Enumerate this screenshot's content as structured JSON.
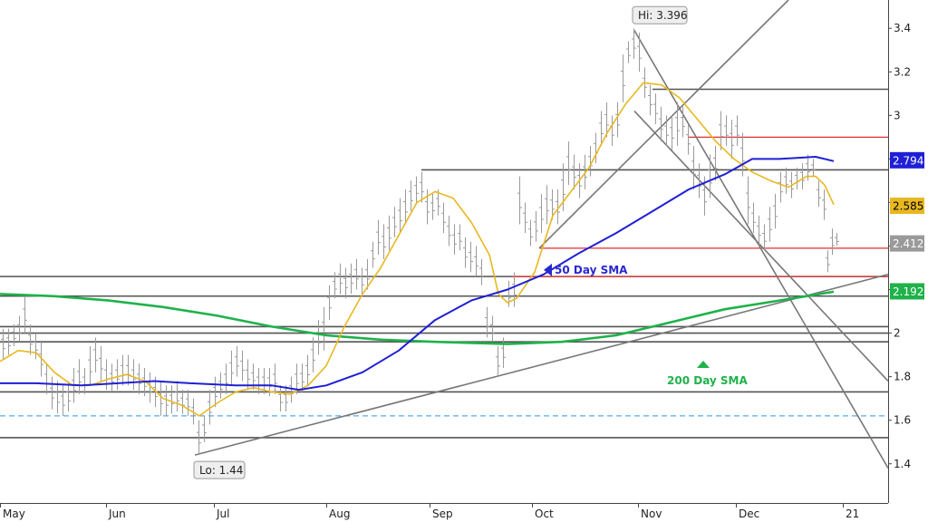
{
  "chart_data": {
    "type": "line",
    "title": "",
    "xlabel": "",
    "ylabel": "",
    "x_ticks": [
      "May",
      "Jun",
      "Jul",
      "Aug",
      "Sep",
      "Oct",
      "Nov",
      "Dec",
      "21"
    ],
    "y_ticks": [
      "1.4",
      "1.6",
      "1.8",
      "2",
      "2.2",
      "2.4",
      "2.6",
      "2.8",
      "3",
      "3.2",
      "3.4"
    ],
    "ylim": [
      1.22,
      3.53
    ],
    "grid": false,
    "series": [
      {
        "name": "50 Day SMA",
        "color": "#1f1fd6",
        "last": "2.794",
        "points": [
          [
            0,
            1.77
          ],
          [
            40,
            1.77
          ],
          [
            90,
            1.76
          ],
          [
            130,
            1.77
          ],
          [
            170,
            1.78
          ],
          [
            210,
            1.77
          ],
          [
            260,
            1.76
          ],
          [
            300,
            1.76
          ],
          [
            330,
            1.74
          ],
          [
            360,
            1.76
          ],
          [
            400,
            1.82
          ],
          [
            440,
            1.92
          ],
          [
            480,
            2.06
          ],
          [
            520,
            2.15
          ],
          [
            560,
            2.2
          ],
          [
            600,
            2.27
          ],
          [
            640,
            2.37
          ],
          [
            680,
            2.46
          ],
          [
            720,
            2.56
          ],
          [
            760,
            2.66
          ],
          [
            800,
            2.73
          ],
          [
            830,
            2.8
          ],
          [
            860,
            2.8
          ],
          [
            900,
            2.81
          ],
          [
            920,
            2.79
          ]
        ]
      },
      {
        "name": "200 Day SMA",
        "color": "#1fb24a",
        "last": "2.192",
        "points": [
          [
            0,
            2.18
          ],
          [
            60,
            2.17
          ],
          [
            120,
            2.15
          ],
          [
            180,
            2.12
          ],
          [
            240,
            2.08
          ],
          [
            300,
            2.03
          ],
          [
            360,
            1.99
          ],
          [
            420,
            1.97
          ],
          [
            480,
            1.96
          ],
          [
            560,
            1.95
          ],
          [
            620,
            1.96
          ],
          [
            680,
            1.99
          ],
          [
            740,
            2.05
          ],
          [
            800,
            2.11
          ],
          [
            860,
            2.15
          ],
          [
            920,
            2.19
          ]
        ]
      },
      {
        "name": "",
        "color": "#e8b820",
        "last": "2.585",
        "points": [
          [
            0,
            1.87
          ],
          [
            20,
            1.92
          ],
          [
            40,
            1.91
          ],
          [
            60,
            1.82
          ],
          [
            80,
            1.76
          ],
          [
            100,
            1.76
          ],
          [
            120,
            1.79
          ],
          [
            140,
            1.81
          ],
          [
            160,
            1.78
          ],
          [
            180,
            1.7
          ],
          [
            200,
            1.67
          ],
          [
            220,
            1.62
          ],
          [
            240,
            1.68
          ],
          [
            260,
            1.73
          ],
          [
            280,
            1.75
          ],
          [
            300,
            1.73
          ],
          [
            320,
            1.72
          ],
          [
            340,
            1.76
          ],
          [
            360,
            1.85
          ],
          [
            380,
            2.03
          ],
          [
            400,
            2.18
          ],
          [
            420,
            2.3
          ],
          [
            440,
            2.45
          ],
          [
            460,
            2.6
          ],
          [
            480,
            2.65
          ],
          [
            500,
            2.62
          ],
          [
            520,
            2.51
          ],
          [
            540,
            2.36
          ],
          [
            550,
            2.18
          ],
          [
            560,
            2.14
          ],
          [
            570,
            2.16
          ],
          [
            590,
            2.28
          ],
          [
            610,
            2.54
          ],
          [
            630,
            2.65
          ],
          [
            650,
            2.76
          ],
          [
            670,
            2.92
          ],
          [
            690,
            3.05
          ],
          [
            710,
            3.15
          ],
          [
            730,
            3.14
          ],
          [
            750,
            3.08
          ],
          [
            770,
            2.98
          ],
          [
            790,
            2.88
          ],
          [
            810,
            2.8
          ],
          [
            830,
            2.74
          ],
          [
            850,
            2.7
          ],
          [
            870,
            2.67
          ],
          [
            890,
            2.72
          ],
          [
            900,
            2.72
          ],
          [
            910,
            2.68
          ],
          [
            920,
            2.59
          ]
        ]
      }
    ],
    "price_bars": [
      [
        3,
        1.88,
        2.02
      ],
      [
        9,
        1.9,
        2.02
      ],
      [
        15,
        1.94,
        2.04
      ],
      [
        21,
        1.96,
        2.08
      ],
      [
        27,
        2.0,
        2.17
      ],
      [
        33,
        1.9,
        2.04
      ],
      [
        39,
        1.88,
        2.0
      ],
      [
        45,
        1.8,
        1.96
      ],
      [
        51,
        1.72,
        1.86
      ],
      [
        57,
        1.65,
        1.8
      ],
      [
        63,
        1.63,
        1.78
      ],
      [
        69,
        1.62,
        1.76
      ],
      [
        75,
        1.64,
        1.78
      ],
      [
        81,
        1.68,
        1.84
      ],
      [
        87,
        1.72,
        1.88
      ],
      [
        93,
        1.72,
        1.84
      ],
      [
        99,
        1.76,
        1.94
      ],
      [
        105,
        1.82,
        1.98
      ],
      [
        111,
        1.78,
        1.94
      ],
      [
        117,
        1.74,
        1.88
      ],
      [
        123,
        1.73,
        1.86
      ],
      [
        129,
        1.74,
        1.88
      ],
      [
        135,
        1.76,
        1.9
      ],
      [
        141,
        1.76,
        1.9
      ],
      [
        147,
        1.74,
        1.88
      ],
      [
        153,
        1.72,
        1.86
      ],
      [
        159,
        1.71,
        1.84
      ],
      [
        165,
        1.68,
        1.82
      ],
      [
        171,
        1.66,
        1.8
      ],
      [
        177,
        1.62,
        1.78
      ],
      [
        183,
        1.62,
        1.76
      ],
      [
        189,
        1.63,
        1.76
      ],
      [
        195,
        1.64,
        1.78
      ],
      [
        201,
        1.63,
        1.74
      ],
      [
        207,
        1.62,
        1.74
      ],
      [
        213,
        1.58,
        1.7
      ],
      [
        219,
        1.44,
        1.6
      ],
      [
        225,
        1.5,
        1.62
      ],
      [
        231,
        1.58,
        1.74
      ],
      [
        237,
        1.66,
        1.8
      ],
      [
        243,
        1.7,
        1.82
      ],
      [
        249,
        1.72,
        1.86
      ],
      [
        255,
        1.76,
        1.92
      ],
      [
        261,
        1.8,
        1.94
      ],
      [
        267,
        1.78,
        1.92
      ],
      [
        273,
        1.74,
        1.88
      ],
      [
        279,
        1.74,
        1.86
      ],
      [
        285,
        1.72,
        1.84
      ],
      [
        291,
        1.72,
        1.84
      ],
      [
        297,
        1.71,
        1.84
      ],
      [
        303,
        1.72,
        1.86
      ],
      [
        309,
        1.64,
        1.76
      ],
      [
        315,
        1.64,
        1.76
      ],
      [
        321,
        1.68,
        1.8
      ],
      [
        327,
        1.72,
        1.86
      ],
      [
        333,
        1.73,
        1.86
      ],
      [
        339,
        1.76,
        1.9
      ],
      [
        345,
        1.82,
        1.98
      ],
      [
        351,
        1.9,
        2.06
      ],
      [
        357,
        1.92,
        2.12
      ],
      [
        363,
        2.06,
        2.22
      ],
      [
        369,
        2.16,
        2.28
      ],
      [
        375,
        2.18,
        2.32
      ],
      [
        381,
        2.16,
        2.3
      ],
      [
        387,
        2.18,
        2.32
      ],
      [
        393,
        2.2,
        2.34
      ],
      [
        399,
        2.18,
        2.3
      ],
      [
        405,
        2.2,
        2.34
      ],
      [
        411,
        2.3,
        2.42
      ],
      [
        417,
        2.36,
        2.52
      ],
      [
        423,
        2.34,
        2.5
      ],
      [
        429,
        2.38,
        2.54
      ],
      [
        435,
        2.44,
        2.58
      ],
      [
        441,
        2.46,
        2.62
      ],
      [
        447,
        2.5,
        2.66
      ],
      [
        453,
        2.56,
        2.7
      ],
      [
        459,
        2.6,
        2.72
      ],
      [
        465,
        2.6,
        2.74
      ],
      [
        471,
        2.5,
        2.66
      ],
      [
        477,
        2.52,
        2.64
      ],
      [
        483,
        2.54,
        2.66
      ],
      [
        489,
        2.46,
        2.6
      ],
      [
        495,
        2.4,
        2.54
      ],
      [
        501,
        2.36,
        2.5
      ],
      [
        507,
        2.38,
        2.5
      ],
      [
        513,
        2.3,
        2.44
      ],
      [
        519,
        2.28,
        2.42
      ],
      [
        525,
        2.26,
        2.4
      ],
      [
        531,
        2.22,
        2.34
      ],
      [
        537,
        1.98,
        2.12
      ],
      [
        543,
        1.96,
        2.08
      ],
      [
        549,
        1.8,
        1.94
      ],
      [
        555,
        1.84,
        1.98
      ],
      [
        561,
        2.12,
        2.24
      ],
      [
        567,
        2.12,
        2.28
      ],
      [
        573,
        2.5,
        2.72
      ],
      [
        579,
        2.46,
        2.6
      ],
      [
        585,
        2.4,
        2.52
      ],
      [
        591,
        2.42,
        2.56
      ],
      [
        597,
        2.46,
        2.64
      ],
      [
        603,
        2.5,
        2.68
      ],
      [
        609,
        2.52,
        2.66
      ],
      [
        615,
        2.5,
        2.66
      ],
      [
        621,
        2.56,
        2.78
      ],
      [
        627,
        2.68,
        2.88
      ],
      [
        633,
        2.66,
        2.82
      ],
      [
        639,
        2.62,
        2.78
      ],
      [
        645,
        2.66,
        2.82
      ],
      [
        651,
        2.72,
        2.86
      ],
      [
        657,
        2.78,
        2.92
      ],
      [
        663,
        2.86,
        3.02
      ],
      [
        669,
        2.9,
        3.06
      ],
      [
        675,
        2.86,
        3.0
      ],
      [
        681,
        2.9,
        3.06
      ],
      [
        687,
        3.06,
        3.28
      ],
      [
        693,
        3.24,
        3.34
      ],
      [
        699,
        3.26,
        3.4
      ],
      [
        705,
        3.2,
        3.38
      ],
      [
        711,
        3.08,
        3.22
      ],
      [
        717,
        3.0,
        3.14
      ],
      [
        723,
        2.96,
        3.1
      ],
      [
        729,
        2.88,
        3.04
      ],
      [
        735,
        2.86,
        3.0
      ],
      [
        741,
        2.84,
        3.0
      ],
      [
        747,
        2.86,
        3.06
      ],
      [
        753,
        2.9,
        3.04
      ],
      [
        759,
        2.82,
        2.96
      ],
      [
        765,
        2.66,
        2.86
      ],
      [
        771,
        2.62,
        2.78
      ],
      [
        777,
        2.54,
        2.72
      ],
      [
        783,
        2.62,
        2.82
      ],
      [
        789,
        2.7,
        2.86
      ],
      [
        795,
        2.84,
        3.02
      ],
      [
        801,
        2.86,
        3.0
      ],
      [
        807,
        2.8,
        2.98
      ],
      [
        813,
        2.86,
        3.0
      ],
      [
        819,
        2.72,
        2.92
      ],
      [
        825,
        2.5,
        2.72
      ],
      [
        831,
        2.46,
        2.6
      ],
      [
        837,
        2.4,
        2.54
      ],
      [
        843,
        2.38,
        2.5
      ],
      [
        849,
        2.42,
        2.58
      ],
      [
        855,
        2.48,
        2.64
      ],
      [
        861,
        2.6,
        2.74
      ],
      [
        867,
        2.64,
        2.76
      ],
      [
        873,
        2.62,
        2.74
      ],
      [
        879,
        2.66,
        2.76
      ],
      [
        885,
        2.66,
        2.78
      ],
      [
        891,
        2.7,
        2.82
      ],
      [
        897,
        2.72,
        2.8
      ],
      [
        903,
        2.58,
        2.7
      ],
      [
        909,
        2.52,
        2.66
      ],
      [
        913,
        2.28,
        2.38
      ],
      [
        918,
        2.36,
        2.48
      ],
      [
        923,
        2.4,
        2.46
      ]
    ],
    "horizontal_levels": [
      {
        "value": 3.12,
        "color": "#555555",
        "x_start": 720
      },
      {
        "value": 2.9,
        "color": "#e03030",
        "x_start": 760
      },
      {
        "value": 2.75,
        "color": "#555555",
        "x_start": 465
      },
      {
        "value": 2.39,
        "color": "#e03030",
        "x_start": 595
      },
      {
        "value": 2.26,
        "color": "#555555",
        "x_start": 0
      },
      {
        "value": 2.26,
        "color": "#e03030",
        "x_start": 565
      },
      {
        "value": 2.17,
        "color": "#555555",
        "x_start": 0
      },
      {
        "value": 2.03,
        "color": "#555555",
        "x_start": 0
      },
      {
        "value": 2.0,
        "color": "#555555",
        "x_start": 0
      },
      {
        "value": 1.96,
        "color": "#555555",
        "x_start": 0
      },
      {
        "value": 1.73,
        "color": "#555555",
        "x_start": 0
      },
      {
        "value": 1.62,
        "color": "#55aaee",
        "x_start": 0,
        "dashed": true
      },
      {
        "value": 1.52,
        "color": "#555555",
        "x_start": 0
      }
    ],
    "trendlines": [
      {
        "from": [
          215,
          1.44
        ],
        "to": [
          980,
          2.27
        ]
      },
      {
        "from": [
          595,
          2.39
        ],
        "to": [
          870,
          3.53
        ]
      },
      {
        "from": [
          700,
          3.39
        ],
        "to": [
          980,
          1.38
        ]
      },
      {
        "from": [
          700,
          3.02
        ],
        "to": [
          980,
          1.78
        ]
      }
    ],
    "annotations": {
      "hi": {
        "label": "Hi: 3.396",
        "x": 700,
        "value": 3.396
      },
      "lo": {
        "label": "Lo: 1.44",
        "x": 218,
        "value": 1.44
      },
      "sma50": {
        "label": "50 Day SMA",
        "x": 600,
        "value": 2.29,
        "color": "#2828d0"
      },
      "sma200": {
        "label": "200 Day SMA",
        "x": 776,
        "value": 1.84,
        "color": "#1fb24a"
      }
    },
    "last_price": {
      "label": "2.412",
      "color": "#9a9a9a"
    }
  }
}
